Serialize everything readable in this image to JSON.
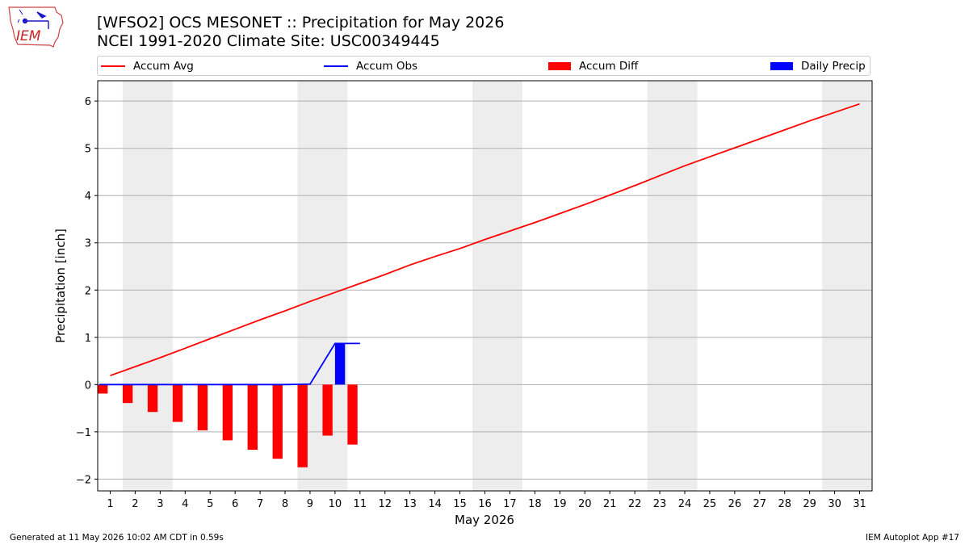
{
  "header": {
    "title": "[WFSO2] OCS MESONET :: Precipitation for May 2026",
    "subtitle": "NCEI 1991-2020 Climate Site: USC00349445",
    "logo_text": "IEM"
  },
  "footer": {
    "generated": "Generated at 11 May 2026 10:02 AM CDT in 0.59s",
    "app": "IEM Autoplot App #17"
  },
  "colors": {
    "accum_avg": "#ff0000",
    "accum_obs": "#0000ff",
    "accum_diff": "#ff0000",
    "daily_precip": "#0000ff",
    "weekend_band": "#ededed",
    "grid": "#b0b0b0"
  },
  "chart_data": {
    "type": "bar",
    "title": "[WFSO2] OCS MESONET :: Precipitation for May 2026",
    "subtitle": "NCEI 1991-2020 Climate Site: USC00349445",
    "xlabel": "May 2026",
    "ylabel": "Precipitation [inch]",
    "xlim": [
      0.5,
      31.5
    ],
    "ylim": [
      -2.25,
      6.43
    ],
    "yticks": [
      -2,
      -1,
      0,
      1,
      2,
      3,
      4,
      5,
      6
    ],
    "ytick_labels": [
      "−2",
      "−1",
      "0",
      "1",
      "2",
      "3",
      "4",
      "5",
      "6"
    ],
    "xticks": [
      1,
      2,
      3,
      4,
      5,
      6,
      7,
      8,
      9,
      10,
      11,
      12,
      13,
      14,
      15,
      16,
      17,
      18,
      19,
      20,
      21,
      22,
      23,
      24,
      25,
      26,
      27,
      28,
      29,
      30,
      31
    ],
    "grid": "horizontal",
    "legend_placement": "top, above plot, expanded",
    "weekend_days": [
      [
        2,
        3
      ],
      [
        9,
        10
      ],
      [
        16,
        17
      ],
      [
        23,
        24
      ],
      [
        30,
        31
      ]
    ],
    "legend": [
      "Accum Avg",
      "Accum Obs",
      "Accum Diff",
      "Daily Precip"
    ],
    "series": [
      {
        "name": "Accum Avg",
        "kind": "line",
        "x": [
          1,
          2,
          3,
          4,
          5,
          6,
          7,
          8,
          9,
          10,
          11,
          12,
          13,
          14,
          15,
          16,
          17,
          18,
          19,
          20,
          21,
          22,
          23,
          24,
          25,
          26,
          27,
          28,
          29,
          30,
          31
        ],
        "values": [
          0.19,
          0.38,
          0.57,
          0.77,
          0.97,
          1.17,
          1.37,
          1.56,
          1.76,
          1.95,
          2.14,
          2.33,
          2.53,
          2.71,
          2.88,
          3.07,
          3.25,
          3.43,
          3.62,
          3.81,
          4.01,
          4.21,
          4.42,
          4.63,
          4.82,
          5.01,
          5.2,
          5.39,
          5.58,
          5.76,
          5.94
        ]
      },
      {
        "name": "Accum Obs",
        "kind": "line",
        "x": [
          1,
          2,
          3,
          4,
          5,
          6,
          7,
          8,
          9,
          10,
          11
        ],
        "values": [
          0,
          0,
          0,
          0,
          0,
          0,
          0,
          0,
          0.01,
          0.87,
          0.87
        ]
      },
      {
        "name": "Accum Diff",
        "kind": "bar",
        "x": [
          1,
          2,
          3,
          4,
          5,
          6,
          7,
          8,
          9,
          10,
          11
        ],
        "values": [
          -0.19,
          -0.39,
          -0.58,
          -0.79,
          -0.97,
          -1.18,
          -1.38,
          -1.57,
          -1.75,
          -1.08,
          -1.27
        ]
      },
      {
        "name": "Daily Precip",
        "kind": "bar",
        "x": [
          10
        ],
        "values": [
          0.87
        ]
      }
    ]
  }
}
